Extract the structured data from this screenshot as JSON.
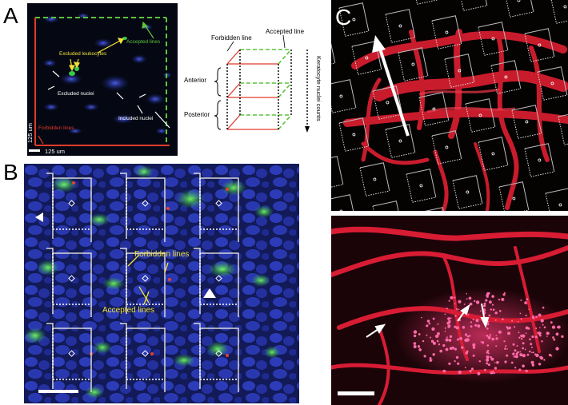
{
  "panels": {
    "a": {
      "letter": "A",
      "labels": {
        "excluded_leukocytes": "Excluded leukocytes",
        "accepted_lines": "Accepted lines",
        "excluded_nuclei": "Excluded nuclei",
        "included_nuclei": "Included nuclei",
        "forbidden_lines": "Forbidden lines",
        "scale_x": "125 um",
        "scale_y": "125 um"
      }
    },
    "diagram": {
      "forbidden_line": "Forbidden line",
      "accepted_line": "Accepted line",
      "anterior": "Anterior",
      "posterior": "Posterior",
      "axis_label": "Keratocyte nuclei counts"
    },
    "b": {
      "letter": "B",
      "labels": {
        "forbidden_lines": "Forbidden lines",
        "accepted_lines": "Accepted lines"
      }
    },
    "c": {
      "letter": "C"
    }
  },
  "colors": {
    "forbidden": "#e03a2a",
    "accepted": "#5cc43a",
    "annotation_yellow": "#f2e23a",
    "nuclei_blue": "#2c3cc8",
    "leukocyte_green": "#3ad24a",
    "vessel_red": "#d01c2c"
  }
}
